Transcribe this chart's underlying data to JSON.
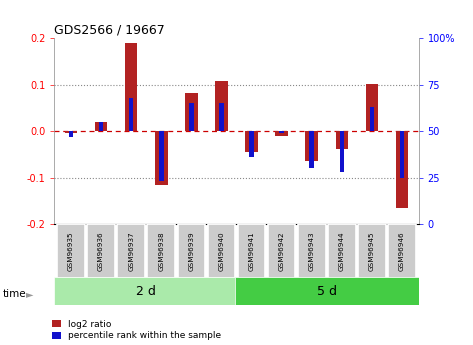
{
  "title": "GDS2566 / 19667",
  "samples": [
    "GSM96935",
    "GSM96936",
    "GSM96937",
    "GSM96938",
    "GSM96939",
    "GSM96940",
    "GSM96941",
    "GSM96942",
    "GSM96943",
    "GSM96944",
    "GSM96945",
    "GSM96946"
  ],
  "log2_ratio": [
    -0.005,
    0.02,
    0.19,
    -0.115,
    0.082,
    0.108,
    -0.045,
    -0.01,
    -0.065,
    -0.038,
    0.102,
    -0.165
  ],
  "percentile_rank": [
    47,
    55,
    68,
    23,
    65,
    65,
    36,
    49,
    30,
    28,
    63,
    25
  ],
  "group1_label": "2 d",
  "group2_label": "5 d",
  "group1_count": 6,
  "group2_count": 6,
  "ylim_left": [
    -0.2,
    0.2
  ],
  "ylim_right": [
    0,
    100
  ],
  "yticks_left": [
    -0.2,
    -0.1,
    0.0,
    0.1,
    0.2
  ],
  "yticks_right": [
    0,
    25,
    50,
    75,
    100
  ],
  "bar_color_red": "#B22222",
  "bar_color_blue": "#1111CC",
  "dashed_zero_color": "#CC0000",
  "dotted_grid_color": "#888888",
  "bg_color": "#FFFFFF",
  "sample_box_color": "#CCCCCC",
  "group1_bg": "#AAEAAA",
  "group2_bg": "#44CC44",
  "legend_red_label": "log2 ratio",
  "legend_blue_label": "percentile rank within the sample",
  "time_label": "time"
}
